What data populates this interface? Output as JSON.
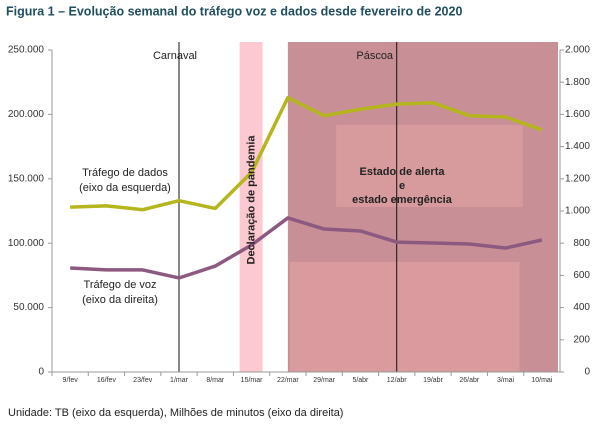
{
  "chart_data": {
    "type": "line",
    "title": "Figura 1 – Evolução semanal do tráfego voz e dados desde fevereiro de 2020",
    "categories": [
      "9/fev",
      "16/fev",
      "23/fev",
      "1/mar",
      "8/mar",
      "15/mar",
      "22/mar",
      "29/mar",
      "5/abr",
      "12/abr",
      "19/abr",
      "26/abr",
      "3/mai",
      "10/mai"
    ],
    "series": [
      {
        "name": "Tráfego de dados",
        "axis_note": "(eixo da esquerda)",
        "color": "#b5b51e",
        "values": [
          128000,
          129000,
          126000,
          133000,
          127000,
          155000,
          213000,
          199000,
          204000,
          208000,
          209000,
          199000,
          198000,
          188000
        ]
      },
      {
        "name": "Tráfego de voz",
        "axis_note": "(eixo da direita)",
        "color": "#8c5a80",
        "axis": "y2",
        "values": [
          646,
          634,
          634,
          584,
          658,
          789,
          957,
          888,
          876,
          807,
          801,
          795,
          770,
          820
        ]
      }
    ],
    "ylim": [
      0,
      250000
    ],
    "yticks": [
      0,
      {
        "value": 50000,
        "label": "50.000"
      },
      {
        "value": 100000,
        "label": "100.000"
      },
      {
        "value": 150000,
        "label": "150.000"
      },
      {
        "value": 200000,
        "label": "200.000"
      },
      {
        "value": 250000,
        "label": "250.000"
      }
    ],
    "y2lim": [
      0,
      2000
    ],
    "y2ticks": [
      0,
      200,
      400,
      600,
      800,
      {
        "value": 1000,
        "label": "1.000"
      },
      {
        "value": 1200,
        "label": "1.200"
      },
      {
        "value": 1400,
        "label": "1.400"
      },
      {
        "value": 1600,
        "label": "1.600"
      },
      {
        "value": 1800,
        "label": "1.800"
      },
      {
        "value": 2000,
        "label": "2.000"
      }
    ],
    "annotations": {
      "carnaval": "Carnaval",
      "pascoa": "Páscoa",
      "pandemia": "Declaração de pandemia",
      "estado": [
        "Estado de alerta",
        "e",
        "estado emergência"
      ]
    },
    "footnote": "Unidade: TB (eixo da esquerda), Milhões de minutos (eixo da direita)"
  }
}
